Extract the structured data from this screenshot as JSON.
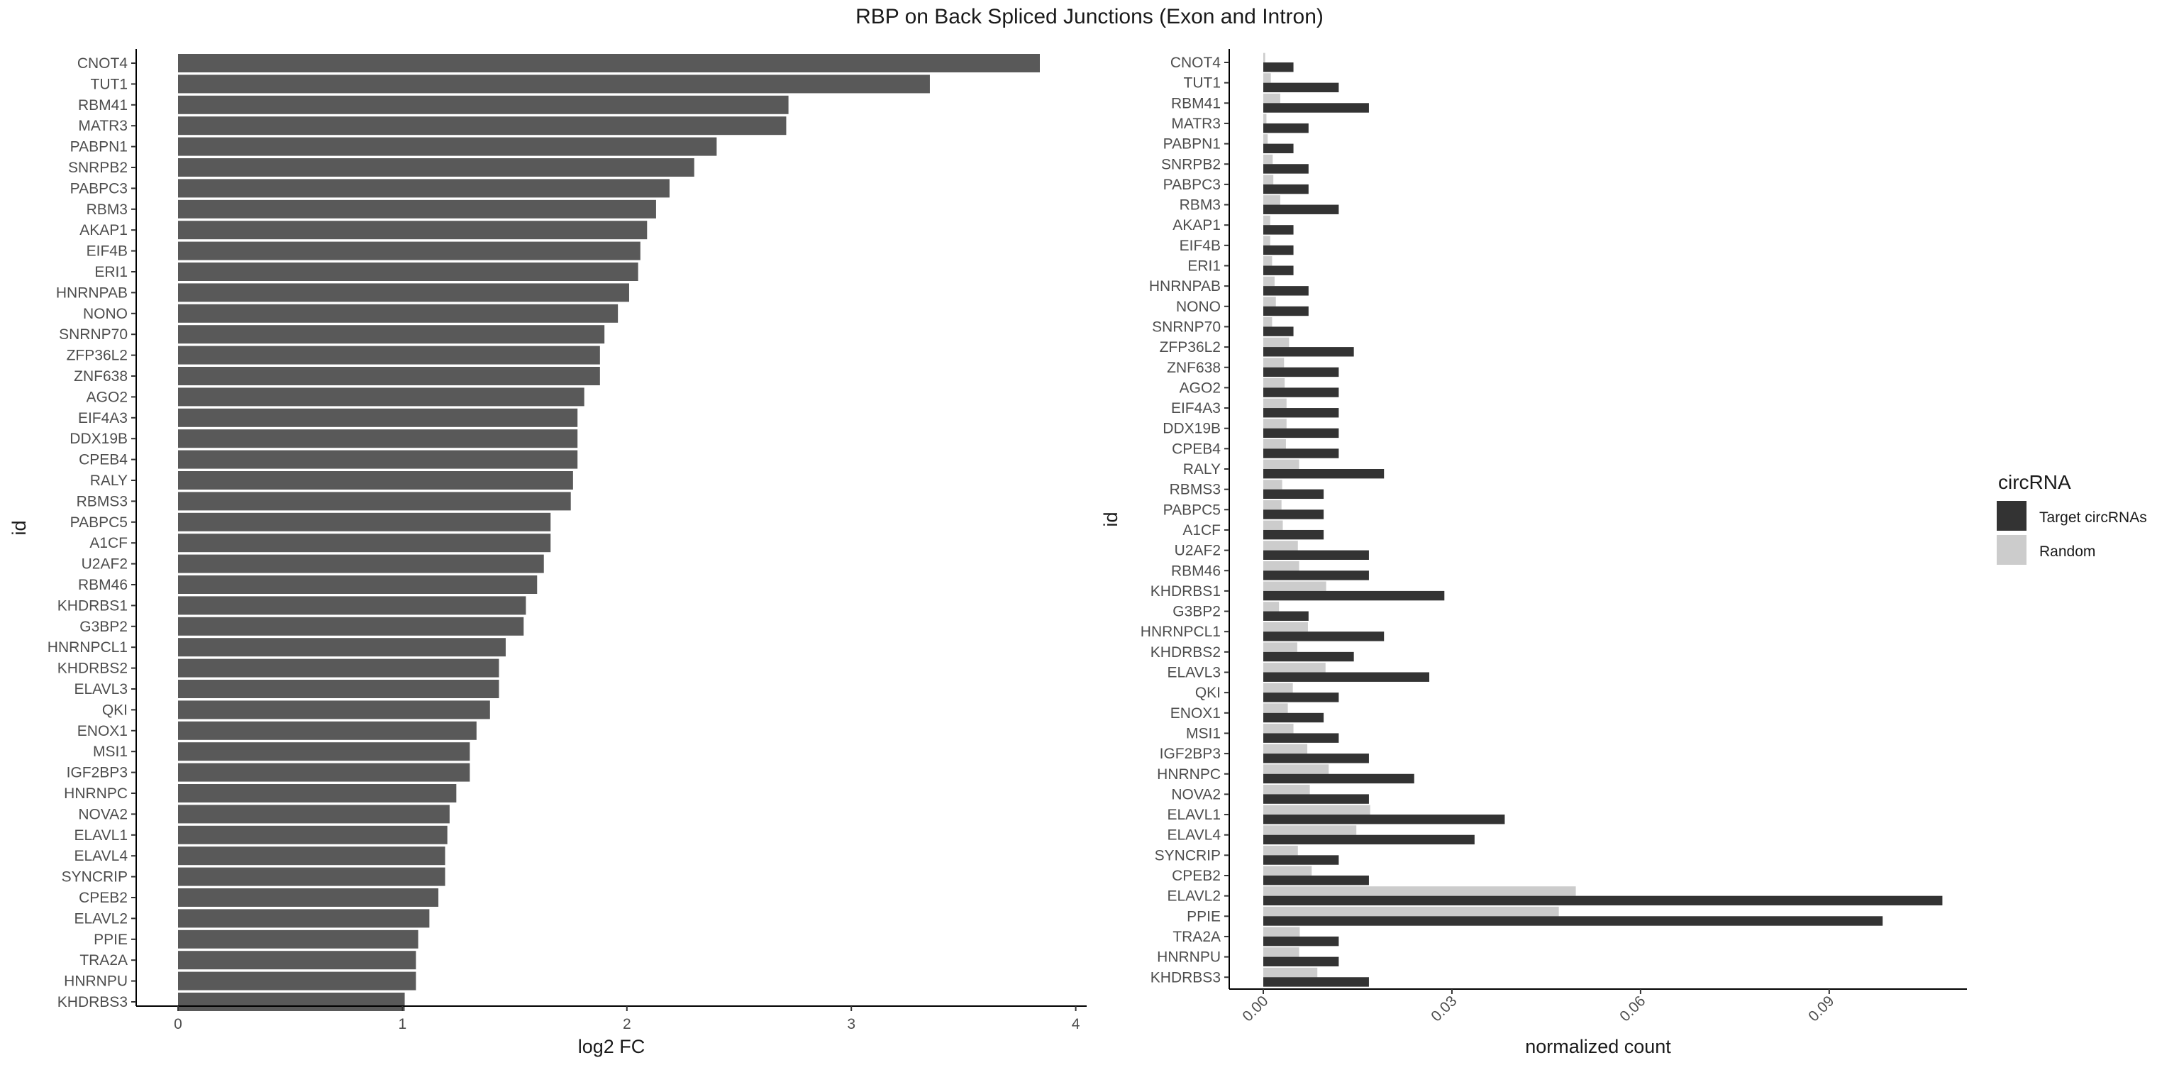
{
  "title": "RBP on Back Spliced Junctions (Exon and Intron)",
  "chart_data": [
    {
      "type": "bar",
      "orientation": "horizontal",
      "ylabel": "id",
      "xlabel": "log2 FC",
      "xlim": [
        0,
        4
      ],
      "xticks": [
        "0",
        "1",
        "2",
        "3",
        "4"
      ],
      "bar_color": "#595959",
      "grid": false,
      "categories": [
        "CNOT4",
        "TUT1",
        "RBM41",
        "MATR3",
        "PABPN1",
        "SNRPB2",
        "PABPC3",
        "RBM3",
        "AKAP1",
        "EIF4B",
        "ERI1",
        "HNRNPAB",
        "NONO",
        "SNRNP70",
        "ZFP36L2",
        "ZNF638",
        "AGO2",
        "EIF4A3",
        "DDX19B",
        "CPEB4",
        "RALY",
        "RBMS3",
        "PABPC5",
        "A1CF",
        "U2AF2",
        "RBM46",
        "KHDRBS1",
        "G3BP2",
        "HNRNPCL1",
        "KHDRBS2",
        "ELAVL3",
        "QKI",
        "ENOX1",
        "MSI1",
        "IGF2BP3",
        "HNRNPC",
        "NOVA2",
        "ELAVL1",
        "ELAVL4",
        "SYNCRIP",
        "CPEB2",
        "ELAVL2",
        "PPIE",
        "TRA2A",
        "HNRNPU",
        "KHDRBS3"
      ],
      "values": [
        3.84,
        3.35,
        2.72,
        2.71,
        2.4,
        2.3,
        2.19,
        2.13,
        2.09,
        2.06,
        2.05,
        2.01,
        1.96,
        1.9,
        1.88,
        1.88,
        1.81,
        1.78,
        1.78,
        1.78,
        1.76,
        1.75,
        1.66,
        1.66,
        1.63,
        1.6,
        1.55,
        1.54,
        1.46,
        1.43,
        1.43,
        1.39,
        1.33,
        1.3,
        1.3,
        1.24,
        1.21,
        1.2,
        1.19,
        1.19,
        1.16,
        1.12,
        1.07,
        1.06,
        1.06,
        1.01
      ]
    },
    {
      "type": "bar",
      "orientation": "horizontal",
      "ylabel": "id",
      "xlabel": "normalized count",
      "xlim": [
        -0.0027,
        0.112
      ],
      "xticks": [
        {
          "value": 0.0,
          "label": "0.00"
        },
        {
          "value": 0.03,
          "label": "0.03"
        },
        {
          "value": 0.06,
          "label": "0.06"
        },
        {
          "value": 0.09,
          "label": "0.09"
        }
      ],
      "xtick_label_rotation": -45,
      "grid": false,
      "legend": {
        "title": "circRNA",
        "position": "right",
        "entries": [
          {
            "label": "Target circRNAs",
            "color": "#333333"
          },
          {
            "label": "Random",
            "color": "#cccccc"
          }
        ]
      },
      "categories": [
        "CNOT4",
        "TUT1",
        "RBM41",
        "MATR3",
        "PABPN1",
        "SNRPB2",
        "PABPC3",
        "RBM3",
        "AKAP1",
        "EIF4B",
        "ERI1",
        "HNRNPAB",
        "NONO",
        "SNRNP70",
        "ZFP36L2",
        "ZNF638",
        "AGO2",
        "EIF4A3",
        "DDX19B",
        "CPEB4",
        "RALY",
        "RBMS3",
        "PABPC5",
        "A1CF",
        "U2AF2",
        "RBM46",
        "KHDRBS1",
        "G3BP2",
        "HNRNPCL1",
        "KHDRBS2",
        "ELAVL3",
        "QKI",
        "ENOX1",
        "MSI1",
        "IGF2BP3",
        "HNRNPC",
        "NOVA2",
        "ELAVL1",
        "ELAVL4",
        "SYNCRIP",
        "CPEB2",
        "ELAVL2",
        "PPIE",
        "TRA2A",
        "HNRNPU",
        "KHDRBS3"
      ],
      "series": [
        {
          "name": "Random",
          "color": "#cccccc",
          "values": [
            0.0003,
            0.0012,
            0.0027,
            0.0005,
            0.0007,
            0.0015,
            0.0016,
            0.0027,
            0.0011,
            0.0011,
            0.0014,
            0.0018,
            0.002,
            0.0014,
            0.0041,
            0.0033,
            0.0034,
            0.0037,
            0.0037,
            0.0036,
            0.0057,
            0.003,
            0.0029,
            0.0031,
            0.0055,
            0.0057,
            0.01,
            0.0025,
            0.0071,
            0.0054,
            0.0099,
            0.0047,
            0.0039,
            0.0048,
            0.007,
            0.0104,
            0.0074,
            0.017,
            0.0148,
            0.0055,
            0.0077,
            0.0497,
            0.047,
            0.0058,
            0.0057,
            0.0086
          ]
        },
        {
          "name": "Target circRNAs",
          "color": "#333333",
          "values": [
            0.0048,
            0.012,
            0.0168,
            0.0072,
            0.0048,
            0.0072,
            0.0072,
            0.012,
            0.0048,
            0.0048,
            0.0048,
            0.0072,
            0.0072,
            0.0048,
            0.0144,
            0.012,
            0.012,
            0.012,
            0.012,
            0.012,
            0.0192,
            0.0096,
            0.0096,
            0.0096,
            0.0168,
            0.0168,
            0.0288,
            0.0072,
            0.0192,
            0.0144,
            0.0264,
            0.012,
            0.0096,
            0.012,
            0.0168,
            0.024,
            0.0168,
            0.0384,
            0.0336,
            0.012,
            0.0168,
            0.108,
            0.0985,
            0.012,
            0.012,
            0.0168
          ]
        }
      ]
    }
  ]
}
